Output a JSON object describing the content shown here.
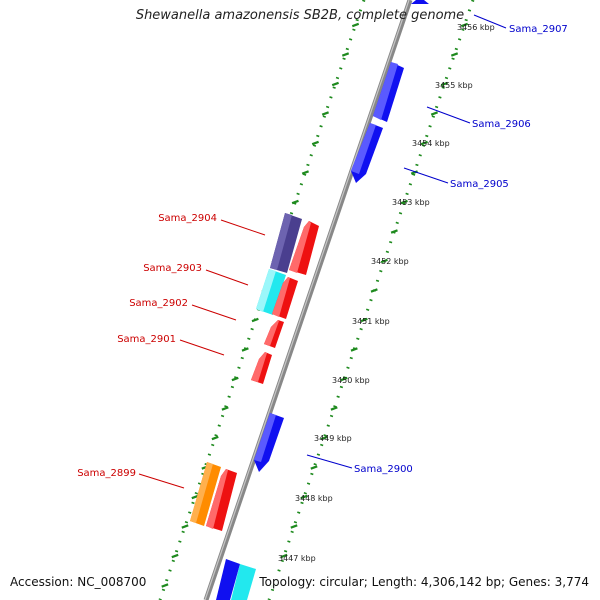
{
  "title": "Shewanella amazonensis SB2B, complete genome",
  "footer": {
    "accession": "Accession: NC_008700",
    "summary": "Topology: circular; Length: 4,306,142 bp; Genes: 3,774"
  },
  "colors": {
    "backbone": "#8c8c8c",
    "tick_dots": "#1e8a1e",
    "forward_label": "#0000cc",
    "reverse_label": "#cc0000",
    "blue": "#1010f0",
    "red": "#ee1111",
    "purple": "#4a3f8f",
    "cyan": "#22e8ee",
    "orange": "#ff8c00"
  },
  "scale": {
    "ticks": [
      {
        "label": "3447 kbp"
      },
      {
        "label": "3448 kbp"
      },
      {
        "label": "3449 kbp"
      },
      {
        "label": "3450 kbp"
      },
      {
        "label": "3451 kbp"
      },
      {
        "label": "3452 kbp"
      },
      {
        "label": "3453 kbp"
      },
      {
        "label": "3454 kbp"
      },
      {
        "label": "3455 kbp"
      },
      {
        "label": "3456 kbp"
      }
    ]
  },
  "genes": [
    {
      "name": "Sama_2907",
      "strand": "forward"
    },
    {
      "name": "Sama_2906",
      "strand": "forward"
    },
    {
      "name": "Sama_2905",
      "strand": "forward"
    },
    {
      "name": "Sama_2904",
      "strand": "reverse"
    },
    {
      "name": "Sama_2903",
      "strand": "reverse"
    },
    {
      "name": "Sama_2902",
      "strand": "reverse"
    },
    {
      "name": "Sama_2901",
      "strand": "reverse"
    },
    {
      "name": "Sama_2900",
      "strand": "forward"
    },
    {
      "name": "Sama_2899",
      "strand": "reverse"
    }
  ]
}
